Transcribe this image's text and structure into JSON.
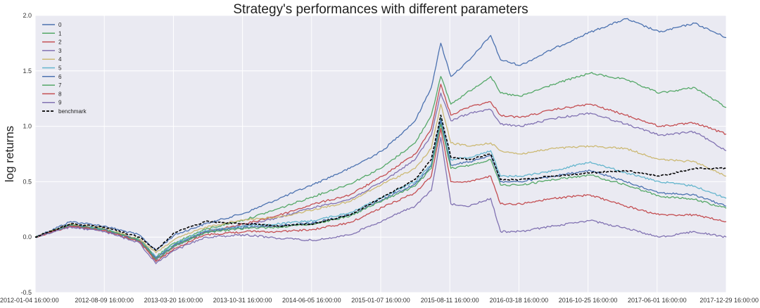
{
  "chart_data": {
    "type": "line",
    "title": "Strategy's performances with different parameters",
    "xlabel": "",
    "ylabel": "log returns",
    "x_tick_labels": [
      "2012-01-04 16:00:00",
      "2012-08-09 16:00:00",
      "2013-03-20 16:00:00",
      "2013-10-31 16:00:00",
      "2014-06-05 16:00:00",
      "2015-01-07 16:00:00",
      "2015-08-11 16:00:00",
      "2016-03-18 16:00:00",
      "2016-10-25 16:00:00",
      "2017-06-01 16:00:00",
      "2017-12-29 16:00:00"
    ],
    "y_ticks": [
      -0.5,
      0.0,
      0.5,
      1.0,
      1.5,
      2.0
    ],
    "y_tick_labels": [
      "-0.5",
      "0.0",
      "0.5",
      "1.0",
      "1.5",
      "2.0"
    ],
    "ylim": [
      -0.5,
      2.0
    ],
    "grid": true,
    "legend_position": "top-left",
    "x": [
      "2012-01-04",
      "2012-04-25",
      "2012-08-09",
      "2012-11-28",
      "2013-01-20",
      "2013-03-20",
      "2013-06-25",
      "2013-10-31",
      "2014-02-15",
      "2014-06-05",
      "2014-09-25",
      "2015-01-07",
      "2015-04-20",
      "2015-06-10",
      "2015-07-10",
      "2015-08-11",
      "2015-10-10",
      "2015-12-15",
      "2016-01-15",
      "2016-03-18",
      "2016-07-01",
      "2016-10-25",
      "2017-02-15",
      "2017-06-01",
      "2017-09-20",
      "2017-12-29"
    ],
    "series": [
      {
        "name": "0",
        "color": "#4c72b0",
        "values": [
          0.0,
          0.14,
          0.1,
          0.02,
          -0.12,
          0.02,
          0.12,
          0.22,
          0.35,
          0.48,
          0.62,
          0.78,
          1.05,
          1.35,
          1.75,
          1.45,
          1.6,
          1.82,
          1.6,
          1.55,
          1.7,
          1.85,
          1.97,
          1.85,
          1.93,
          1.8
        ]
      },
      {
        "name": "1",
        "color": "#55a868",
        "values": [
          0.0,
          0.11,
          0.07,
          -0.02,
          -0.18,
          -0.05,
          0.07,
          0.16,
          0.26,
          0.37,
          0.48,
          0.63,
          0.85,
          1.1,
          1.45,
          1.2,
          1.32,
          1.45,
          1.3,
          1.27,
          1.38,
          1.48,
          1.42,
          1.3,
          1.35,
          1.17
        ]
      },
      {
        "name": "2",
        "color": "#c44e52",
        "values": [
          0.0,
          0.1,
          0.06,
          -0.03,
          -0.2,
          -0.08,
          0.05,
          0.12,
          0.2,
          0.3,
          0.38,
          0.55,
          0.75,
          0.98,
          1.38,
          1.1,
          1.18,
          1.22,
          1.1,
          1.08,
          1.15,
          1.2,
          1.1,
          1.0,
          1.03,
          0.93
        ]
      },
      {
        "name": "3",
        "color": "#8172b2",
        "values": [
          0.0,
          0.1,
          0.06,
          -0.03,
          -0.21,
          -0.08,
          0.04,
          0.11,
          0.18,
          0.27,
          0.34,
          0.5,
          0.7,
          0.92,
          1.3,
          1.05,
          1.12,
          1.15,
          1.02,
          1.0,
          1.07,
          1.12,
          1.02,
          0.92,
          0.95,
          0.78
        ]
      },
      {
        "name": "4",
        "color": "#ccb974",
        "values": [
          0.0,
          0.12,
          0.08,
          -0.02,
          -0.14,
          -0.02,
          0.09,
          0.16,
          0.18,
          0.25,
          0.32,
          0.48,
          0.62,
          0.8,
          1.2,
          0.85,
          0.82,
          0.85,
          0.78,
          0.75,
          0.8,
          0.82,
          0.8,
          0.7,
          0.68,
          0.55
        ]
      },
      {
        "name": "5",
        "color": "#64b5cd",
        "values": [
          0.0,
          0.11,
          0.07,
          -0.03,
          -0.18,
          -0.06,
          0.06,
          0.1,
          0.12,
          0.15,
          0.22,
          0.36,
          0.5,
          0.66,
          1.08,
          0.7,
          0.72,
          0.78,
          0.55,
          0.55,
          0.6,
          0.68,
          0.58,
          0.5,
          0.46,
          0.35
        ]
      },
      {
        "name": "6",
        "color": "#4c72b0",
        "values": [
          0.0,
          0.11,
          0.07,
          -0.03,
          -0.19,
          -0.07,
          0.05,
          0.09,
          0.1,
          0.13,
          0.2,
          0.34,
          0.48,
          0.64,
          1.05,
          0.65,
          0.68,
          0.74,
          0.5,
          0.5,
          0.55,
          0.6,
          0.5,
          0.4,
          0.38,
          0.28
        ]
      },
      {
        "name": "7",
        "color": "#55a868",
        "values": [
          0.0,
          0.11,
          0.07,
          -0.03,
          -0.2,
          -0.08,
          0.04,
          0.08,
          0.09,
          0.12,
          0.19,
          0.33,
          0.46,
          0.62,
          1.02,
          0.62,
          0.65,
          0.7,
          0.47,
          0.47,
          0.52,
          0.56,
          0.47,
          0.37,
          0.34,
          0.26
        ]
      },
      {
        "name": "8",
        "color": "#c44e52",
        "values": [
          0.0,
          0.1,
          0.06,
          -0.04,
          -0.22,
          -0.1,
          0.02,
          0.05,
          0.05,
          0.07,
          0.13,
          0.27,
          0.4,
          0.55,
          0.98,
          0.5,
          0.5,
          0.55,
          0.3,
          0.3,
          0.35,
          0.38,
          0.28,
          0.2,
          0.2,
          0.14
        ]
      },
      {
        "name": "9",
        "color": "#8172b2",
        "values": [
          0.0,
          0.09,
          0.05,
          -0.05,
          -0.24,
          -0.12,
          0.0,
          0.02,
          -0.01,
          -0.03,
          0.02,
          0.15,
          0.28,
          0.42,
          0.9,
          0.3,
          0.28,
          0.35,
          0.05,
          0.05,
          0.1,
          0.15,
          0.08,
          0.0,
          0.05,
          0.0
        ]
      },
      {
        "name": "benchmark",
        "color": "#000000",
        "dashed": true,
        "values": [
          0.0,
          0.12,
          0.09,
          0.0,
          -0.12,
          0.04,
          0.14,
          0.12,
          0.1,
          0.12,
          0.2,
          0.36,
          0.52,
          0.7,
          1.1,
          0.72,
          0.7,
          0.75,
          0.52,
          0.52,
          0.55,
          0.58,
          0.6,
          0.55,
          0.62,
          0.62
        ]
      }
    ]
  }
}
